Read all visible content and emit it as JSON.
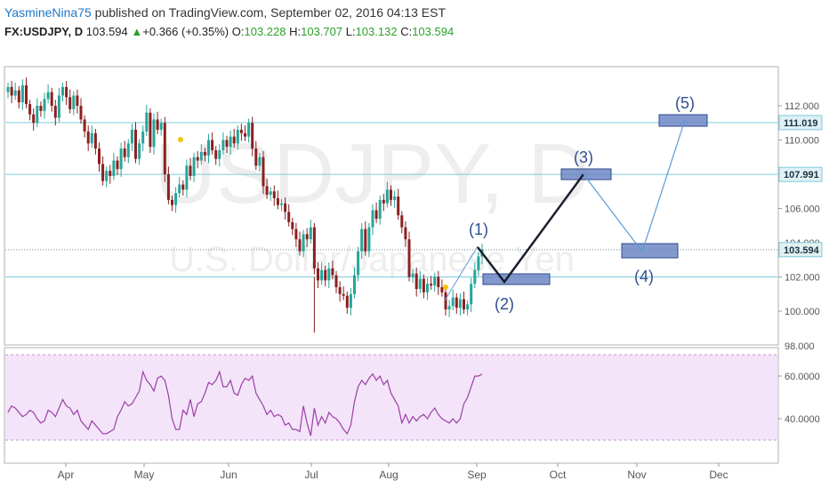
{
  "header": {
    "author": "YasmineNina75",
    "published_text": " published on TradingView.com, September 02, 2016 04:13 EST",
    "symbol": "FX:USDJPY, D",
    "last": "103.594",
    "change": "+0.366 (+0.35%)",
    "o_label": "O:",
    "o": "103.228",
    "h_label": "H:",
    "h": "103.707",
    "l_label": "L:",
    "l": "103.132",
    "c_label": "C:",
    "c": "103.594"
  },
  "watermark": {
    "title": "USDJPY, D",
    "subtitle": "U.S. Dollar/Japanese Yen"
  },
  "price_axis": {
    "ticks": [
      "112.000",
      "110.000",
      "108.000",
      "106.000",
      "104.000",
      "102.000",
      "100.000",
      "98.000"
    ],
    "tags": [
      {
        "label": "111.019",
        "value": 111.019
      },
      {
        "label": "107.991",
        "value": 107.991
      },
      {
        "label": "103.594",
        "value": 103.594
      }
    ]
  },
  "rsi_axis": {
    "ticks": [
      "60.0000",
      "40.0000"
    ]
  },
  "time_axis": {
    "labels": [
      "Apr",
      "May",
      "Jun",
      "Jul",
      "Aug",
      "Sep",
      "Oct",
      "Nov",
      "Dec"
    ]
  },
  "wave_labels": [
    "(1)",
    "(2)",
    "(3)",
    "(4)",
    "(5)"
  ],
  "colors": {
    "up": "#26a69a",
    "down": "#8b2020",
    "hline": "#7ecbd8",
    "wave_box": "#6d87c6",
    "rsi": "#9c3fa6",
    "rsi_band": "#f1e0f7"
  },
  "chart_data": {
    "type": "candlestick",
    "y_range": [
      98,
      113
    ],
    "horizontal_levels": [
      111.019,
      107.991,
      103.594,
      102.0
    ],
    "projected_waves": [
      {
        "label": "(1)",
        "price": 103.7
      },
      {
        "label": "(2)",
        "price": 102.0
      },
      {
        "label": "(3)",
        "price": 108.0
      },
      {
        "label": "(4)",
        "price": 103.5
      },
      {
        "label": "(5)",
        "price": 111.2
      }
    ],
    "close_series": [
      113.1,
      112.6,
      112.9,
      112.2,
      113.2,
      112.1,
      111.5,
      111.0,
      112.0,
      111.7,
      112.4,
      112.8,
      112.0,
      111.3,
      112.6,
      113.1,
      112.5,
      111.8,
      112.6,
      112.0,
      111.2,
      110.5,
      109.8,
      110.4,
      109.5,
      108.6,
      107.6,
      108.2,
      107.9,
      108.8,
      108.3,
      109.5,
      109.0,
      109.8,
      110.6,
      108.9,
      109.8,
      110.5,
      111.6,
      109.6,
      111.2,
      110.6,
      111.0,
      108.0,
      106.5,
      106.2,
      106.9,
      107.4,
      107.1,
      108.5,
      107.9,
      109.0,
      108.8,
      109.3,
      109.1,
      110.0,
      109.4,
      108.9,
      109.4,
      110.0,
      109.6,
      110.2,
      109.8,
      110.6,
      110.4,
      110.2,
      111.0,
      109.5,
      108.5,
      109.0,
      107.3,
      106.8,
      107.0,
      106.6,
      106.2,
      106.3,
      105.8,
      105.2,
      104.8,
      104.2,
      103.5,
      104.5,
      104.2,
      104.9,
      102.5,
      101.8,
      102.4,
      101.8,
      102.5,
      102.1,
      101.4,
      101.0,
      100.9,
      100.2,
      101.0,
      102.1,
      103.5,
      104.8,
      103.5,
      104.9,
      105.9,
      105.4,
      106.5,
      106.3,
      107.1,
      106.5,
      106.7,
      105.6,
      104.9,
      104.2,
      102.0,
      102.2,
      101.3,
      101.9,
      101.1,
      101.6,
      101.5,
      102.0,
      101.4,
      101.1,
      100.1,
      100.3,
      100.8,
      100.2,
      100.7,
      100.1,
      100.4,
      101.6,
      102.4,
      103.2,
      103.6
    ],
    "rsi_series": [
      43,
      46,
      45,
      43,
      41,
      42,
      44,
      43,
      40,
      38,
      39,
      44,
      43,
      41,
      45,
      49,
      46,
      45,
      42,
      44,
      39,
      37,
      35,
      39,
      37,
      35,
      33,
      33,
      34,
      35,
      41,
      44,
      48,
      46,
      47,
      50,
      53,
      62,
      58,
      56,
      53,
      59,
      60,
      58,
      51,
      40,
      35,
      35,
      44,
      42,
      49,
      41,
      47,
      48,
      52,
      57,
      56,
      58,
      62,
      55,
      55,
      58,
      52,
      51,
      56,
      59,
      58,
      60,
      52,
      49,
      46,
      42,
      44,
      41,
      42,
      41,
      37,
      38,
      35,
      35,
      34,
      46,
      38,
      32,
      45,
      37,
      41,
      38,
      43,
      41,
      40,
      38,
      35,
      33,
      37,
      48,
      55,
      58,
      56,
      59,
      61,
      58,
      60,
      56,
      58,
      52,
      49,
      46,
      38,
      42,
      38,
      41,
      39,
      41,
      42,
      40,
      43,
      45,
      42,
      40,
      39,
      38,
      40,
      38,
      40,
      47,
      50,
      55,
      60,
      60,
      61
    ]
  }
}
